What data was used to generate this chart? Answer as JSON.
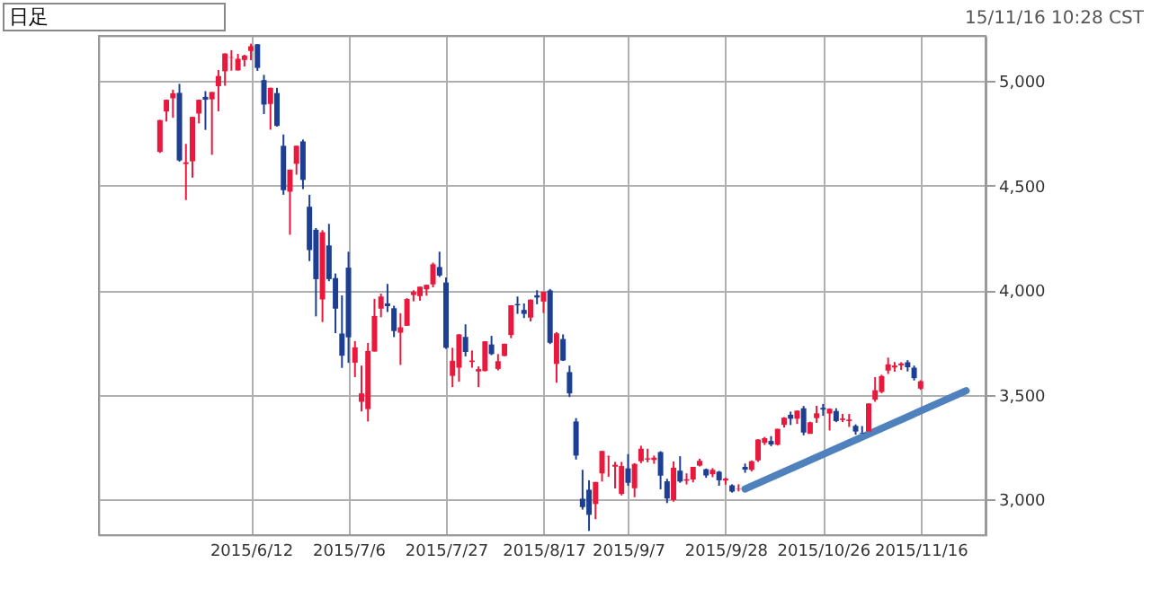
{
  "chart_data": {
    "type": "candlestick",
    "categories": [
      null,
      null,
      null,
      null,
      null,
      null,
      null,
      null,
      null,
      null,
      null,
      null,
      null,
      null,
      "2015/6/12",
      null,
      null,
      null,
      null,
      null,
      null,
      null,
      null,
      null,
      null,
      null,
      null,
      null,
      null,
      "2015/7/6",
      null,
      null,
      null,
      null,
      null,
      null,
      null,
      null,
      null,
      null,
      null,
      null,
      null,
      null,
      "2015/7/27",
      null,
      null,
      null,
      null,
      null,
      null,
      null,
      null,
      null,
      null,
      null,
      null,
      null,
      null,
      "2015/8/17",
      null,
      null,
      null,
      null,
      null,
      null,
      null,
      null,
      null,
      null,
      null,
      null,
      "2015/9/7",
      null,
      null,
      null,
      null,
      null,
      null,
      null,
      null,
      null,
      null,
      null,
      null,
      null,
      null,
      "2015/9/28",
      null,
      null,
      null,
      null,
      null,
      null,
      null,
      null,
      null,
      null,
      null,
      null,
      null,
      null,
      "2015/10/26",
      null,
      null,
      null,
      null,
      null,
      null,
      null,
      null,
      null,
      null,
      null,
      null,
      null,
      null,
      "2015/11/16",
      null,
      null,
      null,
      null,
      null,
      null,
      null
    ],
    "ohlc": [
      [
        4661,
        4814,
        4656,
        4813
      ],
      [
        4854,
        4911,
        4806,
        4910
      ],
      [
        4917,
        4958,
        4824,
        4941
      ],
      [
        4943,
        4986,
        4614,
        4620
      ],
      [
        4603,
        4699,
        4431,
        4611
      ],
      [
        4616,
        4829,
        4538,
        4828
      ],
      [
        4844,
        4911,
        4797,
        4910
      ],
      [
        4924,
        4951,
        4766,
        4910
      ],
      [
        4912,
        4947,
        4647,
        4947
      ],
      [
        4975,
        5052,
        4855,
        5023
      ],
      [
        5046,
        5132,
        4977,
        5131
      ],
      [
        5111,
        5147,
        5049,
        5113
      ],
      [
        5050,
        5129,
        5050,
        5106
      ],
      [
        5100,
        5125,
        5069,
        5121
      ],
      [
        5143,
        5178,
        5099,
        5166
      ],
      [
        5175,
        5176,
        5048,
        5062
      ],
      [
        5004,
        5029,
        4842,
        4887
      ],
      [
        4890,
        4968,
        4767,
        4967
      ],
      [
        4942,
        4967,
        4782,
        4785
      ],
      [
        4690,
        4744,
        4456,
        4478
      ],
      [
        4471,
        4577,
        4265,
        4576
      ],
      [
        4604,
        4691,
        4552,
        4690
      ],
      [
        4711,
        4720,
        4483,
        4527
      ],
      [
        4399,
        4456,
        4139,
        4192
      ],
      [
        4289,
        4297,
        3875,
        4053
      ],
      [
        3956,
        4287,
        3848,
        4277
      ],
      [
        4214,
        4317,
        4043,
        4053
      ],
      [
        4058,
        4080,
        3795,
        3912
      ],
      [
        3793,
        3975,
        3629,
        3687
      ],
      [
        4108,
        4184,
        3653,
        3775
      ],
      [
        3654,
        3757,
        3585,
        3727
      ],
      [
        3467,
        3640,
        3421,
        3507
      ],
      [
        3432,
        3748,
        3373,
        3710
      ],
      [
        3707,
        3959,
        3707,
        3877
      ],
      [
        3912,
        3984,
        3871,
        3970
      ],
      [
        3937,
        4030,
        3896,
        3924
      ],
      [
        3914,
        3926,
        3776,
        3805
      ],
      [
        3797,
        3890,
        3643,
        3823
      ],
      [
        3830,
        3962,
        3830,
        3958
      ],
      [
        3977,
        4000,
        3947,
        3992
      ],
      [
        3972,
        4017,
        3950,
        4017
      ],
      [
        4004,
        4026,
        3974,
        4026
      ],
      [
        4028,
        4132,
        4014,
        4124
      ],
      [
        4111,
        4184,
        4063,
        4070
      ],
      [
        4037,
        4061,
        3720,
        3725
      ],
      [
        3591,
        3725,
        3537,
        3663
      ],
      [
        3630,
        3790,
        3563,
        3789
      ],
      [
        3777,
        3837,
        3684,
        3705
      ],
      [
        3657,
        3712,
        3630,
        3664
      ],
      [
        3612,
        3636,
        3537,
        3623
      ],
      [
        3614,
        3756,
        3612,
        3756
      ],
      [
        3741,
        3782,
        3690,
        3695
      ],
      [
        3624,
        3695,
        3617,
        3661
      ],
      [
        3686,
        3745,
        3685,
        3744
      ],
      [
        3786,
        3929,
        3771,
        3928
      ],
      [
        3934,
        3970,
        3887,
        3928
      ],
      [
        3906,
        3937,
        3867,
        3887
      ],
      [
        3869,
        3956,
        3851,
        3955
      ],
      [
        3976,
        4000,
        3933,
        3965
      ],
      [
        3946,
        3994,
        3891,
        3993
      ],
      [
        3999,
        4006,
        3743,
        3749
      ],
      [
        3648,
        3800,
        3558,
        3794
      ],
      [
        3767,
        3789,
        3662,
        3664
      ],
      [
        3609,
        3640,
        3490,
        3507
      ],
      [
        3373,
        3389,
        3191,
        3210
      ],
      [
        3004,
        3142,
        2952,
        2964
      ],
      [
        3047,
        3092,
        2850,
        2927
      ],
      [
        2979,
        3084,
        2906,
        3084
      ],
      [
        3125,
        3233,
        3086,
        3232
      ],
      [
        3205,
        3210,
        3109,
        3206
      ],
      [
        3157,
        3180,
        3053,
        3166
      ],
      [
        3027,
        3180,
        3020,
        3160
      ],
      [
        3149,
        3217,
        3066,
        3080
      ],
      [
        3054,
        3174,
        3011,
        3170
      ],
      [
        3183,
        3257,
        3174,
        3243
      ],
      [
        3191,
        3243,
        3178,
        3197
      ],
      [
        3189,
        3210,
        3171,
        3200
      ],
      [
        3227,
        3231,
        3049,
        3114
      ],
      [
        3087,
        3099,
        2983,
        3005
      ],
      [
        2998,
        3182,
        2990,
        3152
      ],
      [
        3138,
        3207,
        3080,
        3086
      ],
      [
        3090,
        3125,
        3072,
        3097
      ],
      [
        3096,
        3156,
        3082,
        3156
      ],
      [
        3162,
        3195,
        3158,
        3185
      ],
      [
        3145,
        3148,
        3104,
        3115
      ],
      [
        3121,
        3150,
        3107,
        3142
      ],
      [
        3133,
        3137,
        3066,
        3092
      ],
      [
        3091,
        3105,
        3071,
        3100
      ],
      [
        3068,
        3073,
        3033,
        3038
      ],
      [
        3051,
        3073,
        3039,
        3053
      ],
      [
        3156,
        3172,
        3128,
        3143
      ],
      [
        3142,
        3187,
        3134,
        3183
      ],
      [
        3187,
        3288,
        3180,
        3287
      ],
      [
        3271,
        3299,
        3261,
        3293
      ],
      [
        3280,
        3303,
        3255,
        3263
      ],
      [
        3262,
        3338,
        3258,
        3338
      ],
      [
        3357,
        3394,
        3344,
        3391
      ],
      [
        3405,
        3420,
        3356,
        3386
      ],
      [
        3386,
        3425,
        3361,
        3425
      ],
      [
        3436,
        3447,
        3307,
        3320
      ],
      [
        3314,
        3372,
        3314,
        3369
      ],
      [
        3389,
        3448,
        3366,
        3412
      ],
      [
        3438,
        3457,
        3400,
        3430
      ],
      [
        3411,
        3435,
        3330,
        3434
      ],
      [
        3423,
        3436,
        3370,
        3375
      ],
      [
        3380,
        3409,
        3370,
        3387
      ],
      [
        3375,
        3409,
        3347,
        3382
      ],
      [
        3352,
        3359,
        3310,
        3325
      ],
      [
        3319,
        3351,
        3313,
        3316
      ],
      [
        3325,
        3459,
        3325,
        3459
      ],
      [
        3477,
        3585,
        3467,
        3522
      ],
      [
        3514,
        3596,
        3508,
        3590
      ],
      [
        3616,
        3678,
        3600,
        3646
      ],
      [
        3631,
        3657,
        3611,
        3640
      ],
      [
        3641,
        3656,
        3619,
        3650
      ],
      [
        3656,
        3666,
        3612,
        3632
      ],
      [
        3630,
        3640,
        3569,
        3580
      ],
      [
        3530,
        3570,
        3524,
        3565
      ],
      null,
      null,
      null,
      null,
      null,
      null,
      null
    ],
    "colors": [
      "#e8193c",
      "#e8193c",
      "#e8193c",
      "#1c3f94",
      "#e8193c",
      "#e8193c",
      "#e8193c",
      "#1c3f94",
      "#e8193c",
      "#e8193c",
      "#e8193c",
      "#e8193c",
      "#e8193c",
      "#e8193c",
      "#e8193c",
      "#1c3f94",
      "#1c3f94",
      "#e8193c",
      "#1c3f94",
      "#1c3f94",
      "#e8193c",
      "#e8193c",
      "#1c3f94",
      "#1c3f94",
      "#1c3f94",
      "#e8193c",
      "#1c3f94",
      "#1c3f94",
      "#1c3f94",
      "#1c3f94",
      "#e8193c",
      "#e8193c",
      "#e8193c",
      "#e8193c",
      "#e8193c",
      "#1c3f94",
      "#1c3f94",
      "#e8193c",
      "#e8193c",
      "#e8193c",
      "#e8193c",
      "#e8193c",
      "#e8193c",
      "#1c3f94",
      "#1c3f94",
      "#e8193c",
      "#e8193c",
      "#1c3f94",
      "#e8193c",
      "#e8193c",
      "#e8193c",
      "#1c3f94",
      "#e8193c",
      "#e8193c",
      "#e8193c",
      "#1c3f94",
      "#1c3f94",
      "#e8193c",
      "#1c3f94",
      "#e8193c",
      "#1c3f94",
      "#e8193c",
      "#1c3f94",
      "#1c3f94",
      "#1c3f94",
      "#1c3f94",
      "#1c3f94",
      "#e8193c",
      "#e8193c",
      "#e8193c",
      "#e8193c",
      "#e8193c",
      "#1c3f94",
      "#e8193c",
      "#e8193c",
      "#e8193c",
      "#e8193c",
      "#1c3f94",
      "#1c3f94",
      "#e8193c",
      "#1c3f94",
      "#e8193c",
      "#e8193c",
      "#e8193c",
      "#1c3f94",
      "#e8193c",
      "#1c3f94",
      "#e8193c",
      "#1c3f94",
      "#e8193c",
      "#1c3f94",
      "#e8193c",
      "#e8193c",
      "#e8193c",
      "#1c3f94",
      "#e8193c",
      "#e8193c",
      "#1c3f94",
      "#e8193c",
      "#1c3f94",
      "#e8193c",
      "#e8193c",
      "#1c3f94",
      "#e8193c",
      "#1c3f94",
      "#e8193c",
      "#e8193c",
      "#1c3f94",
      "#1c3f94",
      "#e8193c",
      "#e8193c",
      "#e8193c",
      "#e8193c",
      "#e8193c",
      "#e8193c",
      "#1c3f94",
      "#1c3f94",
      "#e8193c",
      null,
      null,
      null,
      null,
      null,
      null,
      null
    ],
    "series": [
      {
        "type": "line",
        "color": "#4f81bd",
        "values": [
          null,
          null,
          null,
          null,
          null,
          null,
          null,
          null,
          null,
          null,
          null,
          null,
          null,
          null,
          null,
          null,
          null,
          null,
          null,
          null,
          null,
          null,
          null,
          null,
          null,
          null,
          null,
          null,
          null,
          null,
          null,
          null,
          null,
          null,
          null,
          null,
          null,
          null,
          null,
          null,
          null,
          null,
          null,
          null,
          null,
          null,
          null,
          null,
          null,
          null,
          null,
          null,
          null,
          null,
          null,
          null,
          null,
          null,
          null,
          null,
          null,
          null,
          null,
          null,
          null,
          null,
          null,
          null,
          null,
          null,
          null,
          null,
          null,
          null,
          null,
          null,
          null,
          null,
          null,
          null,
          null,
          null,
          null,
          null,
          null,
          null,
          null,
          null,
          null,
          null,
          3050,
          null,
          null,
          null,
          null,
          null,
          null,
          null,
          null,
          null,
          null,
          null,
          null,
          null,
          null,
          null,
          null,
          null,
          null,
          null,
          null,
          null,
          null,
          null,
          null,
          null,
          null,
          null,
          null,
          null,
          null,
          null,
          null,
          null,
          3520
        ]
      }
    ],
    "ylim": [
      2830,
      5215
    ],
    "yticks": [
      {
        "value": 3000,
        "label": "3,000"
      },
      {
        "value": 3500,
        "label": "3,500"
      },
      {
        "value": 4000,
        "label": "4,000"
      },
      {
        "value": 4500,
        "label": "4,500"
      },
      {
        "value": 5000,
        "label": "5,000"
      }
    ],
    "grid": true,
    "annotations": [
      "日足",
      "15/11/16 10:28 CST"
    ]
  }
}
